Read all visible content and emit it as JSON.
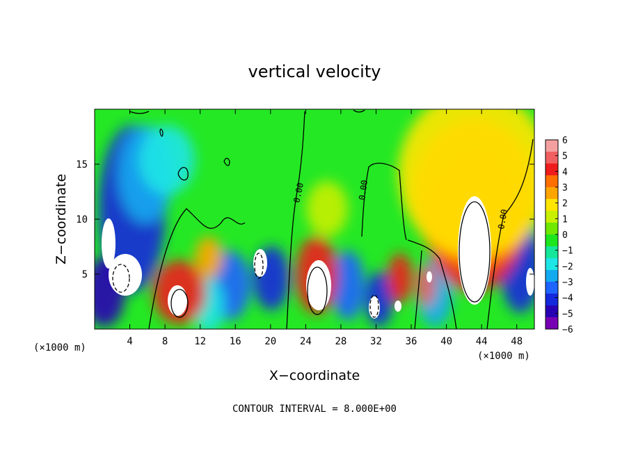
{
  "chart_data": {
    "type": "heatmap",
    "title": "vertical velocity",
    "xlabel": "X−coordinate",
    "ylabel": "Z−coordinate",
    "x_unit_label": "(×1000 m)",
    "y_unit_label": "(×1000 m)",
    "xlim": [
      0,
      50
    ],
    "ylim": [
      0,
      20
    ],
    "x_ticks": [
      4,
      8,
      12,
      16,
      20,
      24,
      28,
      32,
      36,
      40,
      44,
      48
    ],
    "y_ticks": [
      5,
      10,
      15
    ],
    "colorbar": {
      "ticks": [
        "6",
        "5",
        "4",
        "3",
        "2",
        "1",
        "0",
        "−1",
        "−2",
        "−3",
        "−4",
        "−5",
        "−6"
      ],
      "range": [
        -6,
        6
      ],
      "colors": [
        "#f5a0a0",
        "#f06060",
        "#ee1c1c",
        "#ff6f00",
        "#ffa500",
        "#ffe600",
        "#c8f000",
        "#70e800",
        "#1ee61e",
        "#14e69a",
        "#1ee6e6",
        "#14aaf0",
        "#1e64ff",
        "#1428dc",
        "#2800b4",
        "#7800b4"
      ]
    },
    "contour_labels": [
      "0.00",
      "0.00",
      "0.00"
    ],
    "footer": "CONTOUR INTERVAL = 8.000E+00"
  }
}
